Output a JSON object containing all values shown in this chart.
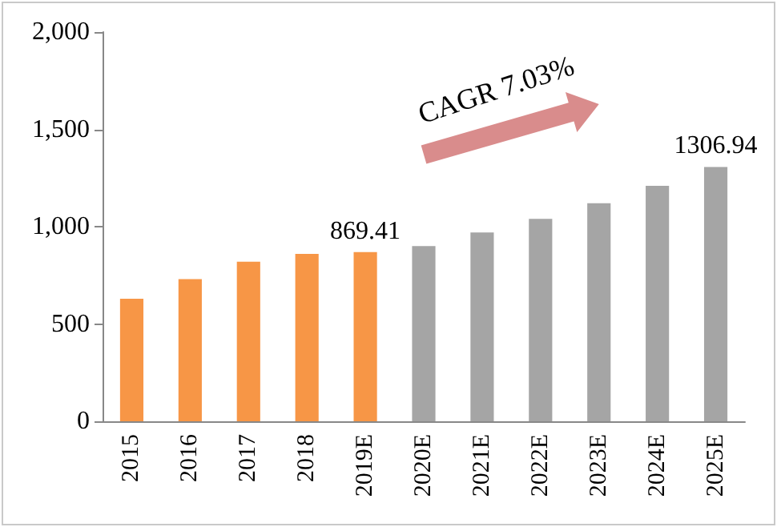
{
  "chart_data": {
    "type": "bar",
    "categories": [
      "2015",
      "2016",
      "2017",
      "2018",
      "2019E",
      "2020E",
      "2021E",
      "2022E",
      "2023E",
      "2024E",
      "2025E"
    ],
    "values": [
      630,
      730,
      820,
      860,
      869.41,
      900,
      970,
      1040,
      1120,
      1210,
      1306.94
    ],
    "colors": [
      "#f79646",
      "#f79646",
      "#f79646",
      "#f79646",
      "#f79646",
      "#a5a5a5",
      "#a5a5a5",
      "#a5a5a5",
      "#a5a5a5",
      "#a5a5a5",
      "#a5a5a5"
    ],
    "value_labels": [
      null,
      null,
      null,
      null,
      "869.41",
      null,
      null,
      null,
      null,
      null,
      "1306.94"
    ],
    "ylim": [
      0,
      2000
    ],
    "yticks": [
      0,
      500,
      {
        "value": 1000,
        "label": "1,000"
      },
      {
        "value": 1500,
        "label": "1,500"
      },
      {
        "value": 2000,
        "label": "2,000"
      }
    ],
    "grid": false,
    "annotations": [
      "CAGR  7.03%"
    ]
  }
}
